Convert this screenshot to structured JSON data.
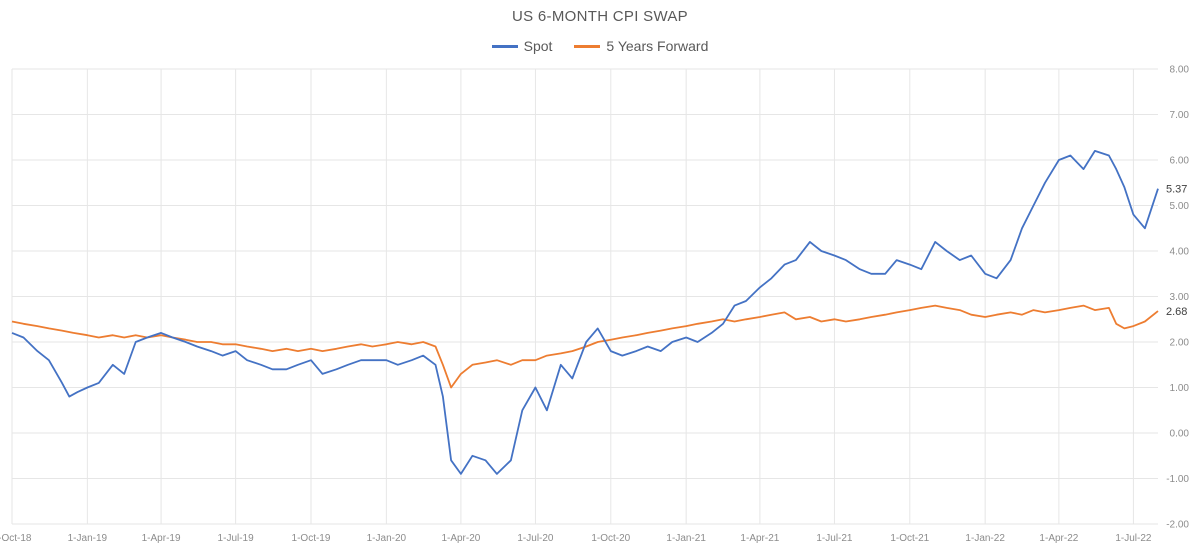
{
  "chart_data": {
    "type": "line",
    "title": "US 6-MONTH CPI SWAP",
    "xlabel": "",
    "ylabel": "",
    "ylim": [
      -2,
      8
    ],
    "yticks": [
      "-2.00",
      "-1.00",
      "0.00",
      "1.00",
      "2.00",
      "3.00",
      "4.00",
      "5.00",
      "6.00",
      "7.00",
      "8.00"
    ],
    "y_axis_position": "right",
    "x_start": "2018-10-01",
    "x_end": "2022-07-31",
    "xticks": [
      {
        "label": "1-Oct-18",
        "date": "2018-10-01"
      },
      {
        "label": "1-Jan-19",
        "date": "2019-01-01"
      },
      {
        "label": "1-Apr-19",
        "date": "2019-04-01"
      },
      {
        "label": "1-Jul-19",
        "date": "2019-07-01"
      },
      {
        "label": "1-Oct-19",
        "date": "2019-10-01"
      },
      {
        "label": "1-Jan-20",
        "date": "2020-01-01"
      },
      {
        "label": "1-Apr-20",
        "date": "2020-04-01"
      },
      {
        "label": "1-Jul-20",
        "date": "2020-07-01"
      },
      {
        "label": "1-Oct-20",
        "date": "2020-10-01"
      },
      {
        "label": "1-Jan-21",
        "date": "2021-01-01"
      },
      {
        "label": "1-Apr-21",
        "date": "2021-04-01"
      },
      {
        "label": "1-Jul-21",
        "date": "2021-07-01"
      },
      {
        "label": "1-Oct-21",
        "date": "2021-10-01"
      },
      {
        "label": "1-Jan-22",
        "date": "2022-01-01"
      },
      {
        "label": "1-Apr-22",
        "date": "2022-04-01"
      },
      {
        "label": "1-Jul-22",
        "date": "2022-07-01"
      }
    ],
    "grid": true,
    "legend_position": "top-center",
    "series": [
      {
        "name": "Spot",
        "color": "#4472C4",
        "end_label": "5.37",
        "x": [
          "2018-10-01",
          "2018-10-15",
          "2018-11-01",
          "2018-11-15",
          "2018-12-01",
          "2018-12-10",
          "2018-12-20",
          "2019-01-01",
          "2019-01-15",
          "2019-02-01",
          "2019-02-15",
          "2019-03-01",
          "2019-03-15",
          "2019-04-01",
          "2019-04-15",
          "2019-05-01",
          "2019-05-15",
          "2019-06-01",
          "2019-06-15",
          "2019-07-01",
          "2019-07-15",
          "2019-08-01",
          "2019-08-15",
          "2019-09-01",
          "2019-09-15",
          "2019-10-01",
          "2019-10-15",
          "2019-11-01",
          "2019-11-15",
          "2019-12-01",
          "2019-12-15",
          "2020-01-01",
          "2020-01-15",
          "2020-02-01",
          "2020-02-15",
          "2020-03-01",
          "2020-03-10",
          "2020-03-20",
          "2020-04-01",
          "2020-04-15",
          "2020-05-01",
          "2020-05-15",
          "2020-06-01",
          "2020-06-15",
          "2020-07-01",
          "2020-07-15",
          "2020-08-01",
          "2020-08-15",
          "2020-09-01",
          "2020-09-15",
          "2020-10-01",
          "2020-10-15",
          "2020-11-01",
          "2020-11-15",
          "2020-12-01",
          "2020-12-15",
          "2021-01-01",
          "2021-01-15",
          "2021-02-01",
          "2021-02-15",
          "2021-03-01",
          "2021-03-15",
          "2021-04-01",
          "2021-04-15",
          "2021-05-01",
          "2021-05-15",
          "2021-06-01",
          "2021-06-15",
          "2021-07-01",
          "2021-07-15",
          "2021-08-01",
          "2021-08-15",
          "2021-09-01",
          "2021-09-15",
          "2021-10-01",
          "2021-10-15",
          "2021-11-01",
          "2021-11-15",
          "2021-12-01",
          "2021-12-15",
          "2022-01-01",
          "2022-01-15",
          "2022-02-01",
          "2022-02-15",
          "2022-03-01",
          "2022-03-15",
          "2022-04-01",
          "2022-04-15",
          "2022-05-01",
          "2022-05-15",
          "2022-06-01",
          "2022-06-10",
          "2022-06-20",
          "2022-07-01",
          "2022-07-15",
          "2022-07-31"
        ],
        "values": [
          2.2,
          2.1,
          1.8,
          1.6,
          1.1,
          0.8,
          0.9,
          1.0,
          1.1,
          1.5,
          1.3,
          2.0,
          2.1,
          2.2,
          2.1,
          2.0,
          1.9,
          1.8,
          1.7,
          1.8,
          1.6,
          1.5,
          1.4,
          1.4,
          1.5,
          1.6,
          1.3,
          1.4,
          1.5,
          1.6,
          1.6,
          1.6,
          1.5,
          1.6,
          1.7,
          1.5,
          0.8,
          -0.6,
          -0.9,
          -0.5,
          -0.6,
          -0.9,
          -0.6,
          0.5,
          1.0,
          0.5,
          1.5,
          1.2,
          2.0,
          2.3,
          1.8,
          1.7,
          1.8,
          1.9,
          1.8,
          2.0,
          2.1,
          2.0,
          2.2,
          2.4,
          2.8,
          2.9,
          3.2,
          3.4,
          3.7,
          3.8,
          4.2,
          4.0,
          3.9,
          3.8,
          3.6,
          3.5,
          3.5,
          3.8,
          3.7,
          3.6,
          4.2,
          4.0,
          3.8,
          3.9,
          3.5,
          3.4,
          3.8,
          4.5,
          5.0,
          5.5,
          6.0,
          6.1,
          5.8,
          6.2,
          6.1,
          5.8,
          5.4,
          4.8,
          4.5,
          5.37
        ]
      },
      {
        "name": "5 Years Forward",
        "color": "#ED7D31",
        "end_label": "2.68",
        "x": [
          "2018-10-01",
          "2018-10-15",
          "2018-11-01",
          "2018-11-15",
          "2018-12-01",
          "2018-12-15",
          "2019-01-01",
          "2019-01-15",
          "2019-02-01",
          "2019-02-15",
          "2019-03-01",
          "2019-03-15",
          "2019-04-01",
          "2019-04-15",
          "2019-05-01",
          "2019-05-15",
          "2019-06-01",
          "2019-06-15",
          "2019-07-01",
          "2019-07-15",
          "2019-08-01",
          "2019-08-15",
          "2019-09-01",
          "2019-09-15",
          "2019-10-01",
          "2019-10-15",
          "2019-11-01",
          "2019-11-15",
          "2019-12-01",
          "2019-12-15",
          "2020-01-01",
          "2020-01-15",
          "2020-02-01",
          "2020-02-15",
          "2020-03-01",
          "2020-03-10",
          "2020-03-20",
          "2020-04-01",
          "2020-04-15",
          "2020-05-01",
          "2020-05-15",
          "2020-06-01",
          "2020-06-15",
          "2020-07-01",
          "2020-07-15",
          "2020-08-01",
          "2020-08-15",
          "2020-09-01",
          "2020-09-15",
          "2020-10-01",
          "2020-10-15",
          "2020-11-01",
          "2020-11-15",
          "2020-12-01",
          "2020-12-15",
          "2021-01-01",
          "2021-01-15",
          "2021-02-01",
          "2021-02-15",
          "2021-03-01",
          "2021-03-15",
          "2021-04-01",
          "2021-04-15",
          "2021-05-01",
          "2021-05-15",
          "2021-06-01",
          "2021-06-15",
          "2021-07-01",
          "2021-07-15",
          "2021-08-01",
          "2021-08-15",
          "2021-09-01",
          "2021-09-15",
          "2021-10-01",
          "2021-10-15",
          "2021-11-01",
          "2021-11-15",
          "2021-12-01",
          "2021-12-15",
          "2022-01-01",
          "2022-01-15",
          "2022-02-01",
          "2022-02-15",
          "2022-03-01",
          "2022-03-15",
          "2022-04-01",
          "2022-04-15",
          "2022-05-01",
          "2022-05-15",
          "2022-06-01",
          "2022-06-10",
          "2022-06-20",
          "2022-07-01",
          "2022-07-15",
          "2022-07-31"
        ],
        "values": [
          2.45,
          2.4,
          2.35,
          2.3,
          2.25,
          2.2,
          2.15,
          2.1,
          2.15,
          2.1,
          2.15,
          2.1,
          2.15,
          2.1,
          2.05,
          2.0,
          2.0,
          1.95,
          1.95,
          1.9,
          1.85,
          1.8,
          1.85,
          1.8,
          1.85,
          1.8,
          1.85,
          1.9,
          1.95,
          1.9,
          1.95,
          2.0,
          1.95,
          2.0,
          1.9,
          1.5,
          1.0,
          1.3,
          1.5,
          1.55,
          1.6,
          1.5,
          1.6,
          1.6,
          1.7,
          1.75,
          1.8,
          1.9,
          2.0,
          2.05,
          2.1,
          2.15,
          2.2,
          2.25,
          2.3,
          2.35,
          2.4,
          2.45,
          2.5,
          2.45,
          2.5,
          2.55,
          2.6,
          2.65,
          2.5,
          2.55,
          2.45,
          2.5,
          2.45,
          2.5,
          2.55,
          2.6,
          2.65,
          2.7,
          2.75,
          2.8,
          2.75,
          2.7,
          2.6,
          2.55,
          2.6,
          2.65,
          2.6,
          2.7,
          2.65,
          2.7,
          2.75,
          2.8,
          2.7,
          2.75,
          2.4,
          2.3,
          2.35,
          2.45,
          2.68
        ]
      }
    ]
  }
}
